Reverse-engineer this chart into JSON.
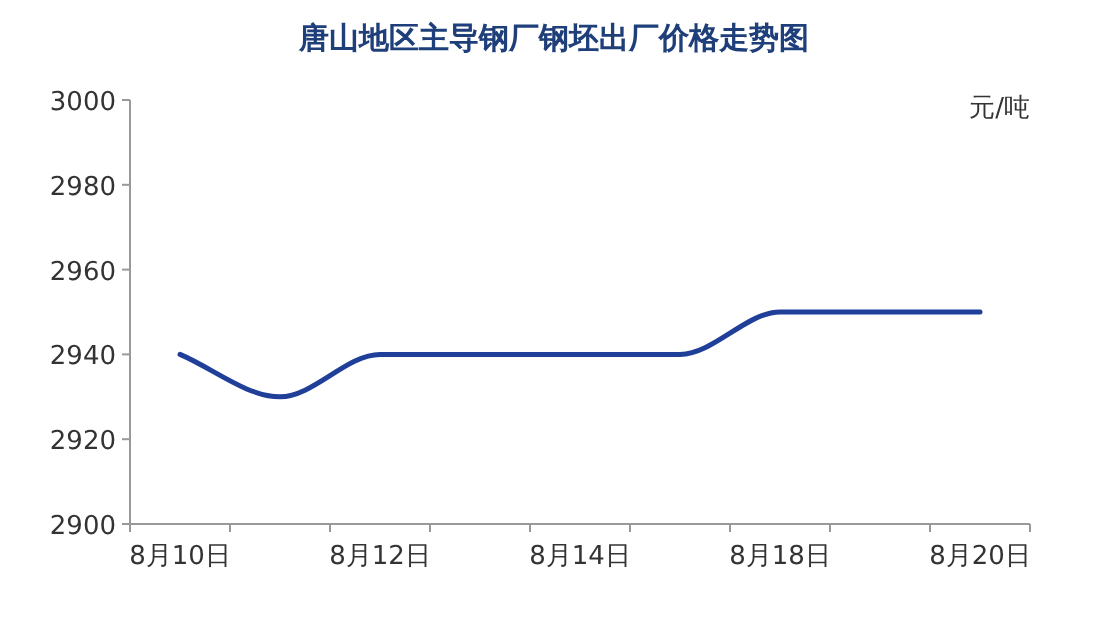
{
  "chart_data": {
    "type": "line",
    "title": "唐山地区主导钢厂钢坯出厂价格走势图",
    "categories": [
      "8月10日",
      null,
      "8月12日",
      null,
      "8月14日",
      null,
      "8月18日",
      null,
      "8月20日"
    ],
    "values": [
      2940,
      2930,
      2940,
      2940,
      2940,
      2940,
      2950,
      2950,
      2950
    ],
    "color": "#1f3f99",
    "ylim": [
      2900,
      3000
    ],
    "yticks": [
      2900,
      2920,
      2940,
      2960,
      2980,
      3000
    ],
    "annotations": [
      "元/吨"
    ]
  }
}
